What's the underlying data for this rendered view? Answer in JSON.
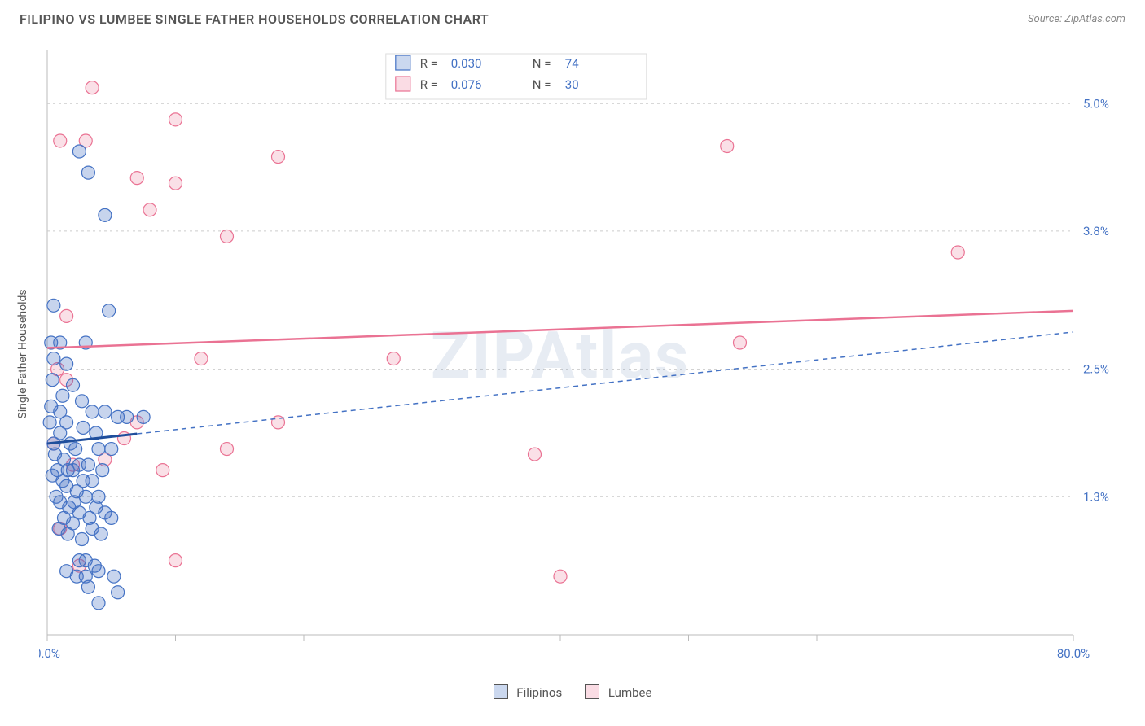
{
  "header": {
    "title": "FILIPINO VS LUMBEE SINGLE FATHER HOUSEHOLDS CORRELATION CHART",
    "source": "Source: ZipAtlas.com"
  },
  "chart": {
    "type": "scatter",
    "ylabel": "Single Father Households",
    "xlim": [
      0,
      80
    ],
    "ylim": [
      0,
      5.5
    ],
    "x_ticks": [
      0,
      10,
      20,
      30,
      40,
      50,
      60,
      70,
      80
    ],
    "x_tick_labels_shown": {
      "0": "0.0%",
      "80": "80.0%"
    },
    "y_gridlines": [
      1.3,
      2.5,
      3.8,
      5.0
    ],
    "y_gridline_labels": [
      "1.3%",
      "2.5%",
      "3.8%",
      "5.0%"
    ],
    "background_color": "#ffffff",
    "grid_color": "#cccccc",
    "border_color": "#bbbbbb",
    "watermark": "ZIPAtlas",
    "watermark_color": "rgba(120,150,190,0.18)",
    "legend_top": {
      "rows": [
        {
          "swatch": "blue",
          "r_label": "R =",
          "r_value": "0.030",
          "n_label": "N =",
          "n_value": "74"
        },
        {
          "swatch": "pink",
          "r_label": "R =",
          "r_value": "0.076",
          "n_label": "N =",
          "n_value": "30"
        }
      ]
    },
    "legend_bottom": {
      "items": [
        {
          "swatch": "blue",
          "label": "Filipinos"
        },
        {
          "swatch": "pink",
          "label": "Lumbee"
        }
      ]
    },
    "series": {
      "blue": {
        "color_fill": "rgba(68,114,196,0.30)",
        "color_stroke": "#4472c4",
        "marker_radius": 8,
        "trend_solid_color": "#1f4e9c",
        "trend_dash_color": "#4472c4",
        "trend": {
          "x0": 0,
          "y0": 1.8,
          "x_solid_end": 7,
          "x1": 80,
          "y1": 2.85
        },
        "points": [
          [
            2.5,
            4.55
          ],
          [
            3.2,
            4.35
          ],
          [
            4.5,
            3.95
          ],
          [
            0.5,
            3.1
          ],
          [
            4.8,
            3.05
          ],
          [
            0.3,
            2.75
          ],
          [
            1.0,
            2.75
          ],
          [
            3.0,
            2.75
          ],
          [
            0.5,
            2.6
          ],
          [
            1.5,
            2.55
          ],
          [
            0.4,
            2.4
          ],
          [
            2.0,
            2.35
          ],
          [
            1.2,
            2.25
          ],
          [
            2.7,
            2.2
          ],
          [
            0.3,
            2.15
          ],
          [
            1.0,
            2.1
          ],
          [
            3.5,
            2.1
          ],
          [
            4.5,
            2.1
          ],
          [
            5.5,
            2.05
          ],
          [
            6.2,
            2.05
          ],
          [
            7.5,
            2.05
          ],
          [
            0.2,
            2.0
          ],
          [
            1.5,
            2.0
          ],
          [
            2.8,
            1.95
          ],
          [
            1.0,
            1.9
          ],
          [
            3.8,
            1.9
          ],
          [
            0.5,
            1.8
          ],
          [
            1.8,
            1.8
          ],
          [
            2.2,
            1.75
          ],
          [
            4.0,
            1.75
          ],
          [
            5.0,
            1.75
          ],
          [
            0.6,
            1.7
          ],
          [
            1.3,
            1.65
          ],
          [
            2.5,
            1.6
          ],
          [
            3.2,
            1.6
          ],
          [
            0.8,
            1.55
          ],
          [
            1.6,
            1.55
          ],
          [
            2.0,
            1.55
          ],
          [
            4.3,
            1.55
          ],
          [
            0.4,
            1.5
          ],
          [
            1.2,
            1.45
          ],
          [
            2.8,
            1.45
          ],
          [
            3.5,
            1.45
          ],
          [
            1.5,
            1.4
          ],
          [
            2.3,
            1.35
          ],
          [
            0.7,
            1.3
          ],
          [
            3.0,
            1.3
          ],
          [
            4.0,
            1.3
          ],
          [
            1.0,
            1.25
          ],
          [
            2.1,
            1.25
          ],
          [
            1.7,
            1.2
          ],
          [
            3.8,
            1.2
          ],
          [
            2.5,
            1.15
          ],
          [
            4.5,
            1.15
          ],
          [
            1.3,
            1.1
          ],
          [
            3.3,
            1.1
          ],
          [
            5.0,
            1.1
          ],
          [
            2.0,
            1.05
          ],
          [
            0.9,
            1.0
          ],
          [
            3.5,
            1.0
          ],
          [
            1.6,
            0.95
          ],
          [
            4.2,
            0.95
          ],
          [
            2.7,
            0.9
          ],
          [
            2.5,
            0.7
          ],
          [
            3.0,
            0.7
          ],
          [
            3.7,
            0.65
          ],
          [
            1.5,
            0.6
          ],
          [
            4.0,
            0.6
          ],
          [
            2.3,
            0.55
          ],
          [
            5.2,
            0.55
          ],
          [
            3.2,
            0.45
          ],
          [
            5.5,
            0.4
          ],
          [
            4.0,
            0.3
          ],
          [
            3.0,
            0.55
          ]
        ]
      },
      "pink": {
        "color_fill": "rgba(234,114,147,0.22)",
        "color_stroke": "#ea7293",
        "marker_radius": 8,
        "trend_color": "#ea7293",
        "trend": {
          "x0": 0,
          "y0": 2.7,
          "x1": 80,
          "y1": 3.05
        },
        "points": [
          [
            3.5,
            5.15
          ],
          [
            10.0,
            4.85
          ],
          [
            1.0,
            4.65
          ],
          [
            3.0,
            4.65
          ],
          [
            53.0,
            4.6
          ],
          [
            18.0,
            4.5
          ],
          [
            7.0,
            4.3
          ],
          [
            10.0,
            4.25
          ],
          [
            8.0,
            4.0
          ],
          [
            14.0,
            3.75
          ],
          [
            71.0,
            3.6
          ],
          [
            1.5,
            3.0
          ],
          [
            54.0,
            2.75
          ],
          [
            12.0,
            2.6
          ],
          [
            27.0,
            2.6
          ],
          [
            0.8,
            2.5
          ],
          [
            1.5,
            2.4
          ],
          [
            7.0,
            2.0
          ],
          [
            18.0,
            2.0
          ],
          [
            6.0,
            1.85
          ],
          [
            0.5,
            1.8
          ],
          [
            14.0,
            1.75
          ],
          [
            38.0,
            1.7
          ],
          [
            4.5,
            1.65
          ],
          [
            2.0,
            1.6
          ],
          [
            9.0,
            1.55
          ],
          [
            1.0,
            1.0
          ],
          [
            10.0,
            0.7
          ],
          [
            2.5,
            0.65
          ],
          [
            40.0,
            0.55
          ]
        ]
      }
    }
  }
}
